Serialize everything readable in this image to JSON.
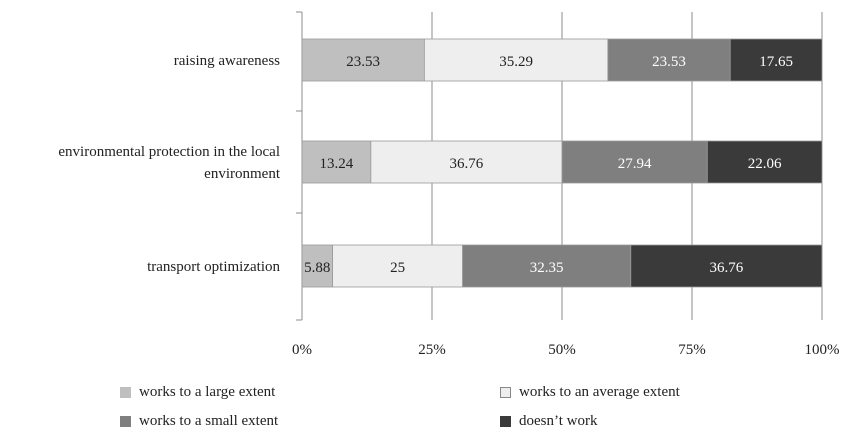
{
  "chart_data": {
    "type": "bar",
    "orientation": "horizontal",
    "stacked": true,
    "categories": [
      [
        "raising awareness"
      ],
      [
        "environmental protection in the local",
        "environment"
      ],
      [
        "transport optimization"
      ]
    ],
    "series": [
      {
        "name": "works to a large extent",
        "color": "#bfbfbf",
        "label_color": "#222222",
        "values": [
          23.53,
          13.24,
          5.88
        ]
      },
      {
        "name": "works to an average extent",
        "color": "#eeeeee",
        "label_color": "#222222",
        "values": [
          35.29,
          36.76,
          25
        ]
      },
      {
        "name": "works to a small extent",
        "color": "#7f7f7f",
        "label_color": "#ffffff",
        "values": [
          23.53,
          27.94,
          32.35
        ]
      },
      {
        "name": "doesn’t work",
        "color": "#3a3a3a",
        "label_color": "#ffffff",
        "values": [
          17.65,
          22.06,
          36.76
        ]
      }
    ],
    "value_labels": [
      [
        "23.53",
        "13.24",
        "5.88"
      ],
      [
        "35.29",
        "36.76",
        "25"
      ],
      [
        "23.53",
        "27.94",
        "32.35"
      ],
      [
        "17.65",
        "22.06",
        "36.76"
      ]
    ],
    "xticks": [
      "0%",
      "25%",
      "50%",
      "75%",
      "100%"
    ],
    "xlim": [
      0,
      100
    ],
    "grid": true,
    "legend_position": "bottom"
  }
}
